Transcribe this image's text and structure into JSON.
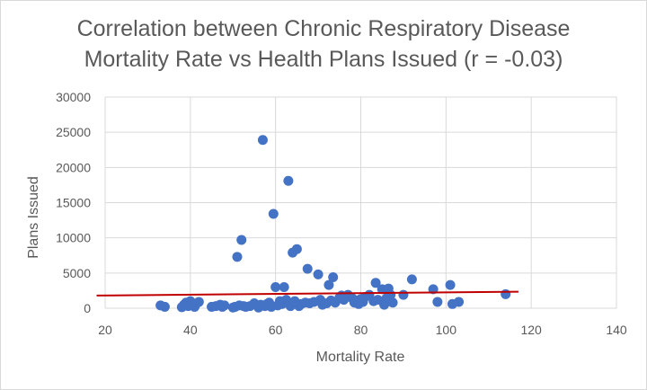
{
  "chart_data": {
    "type": "scatter",
    "title": "Correlation between Chronic Respiratory Disease Mortality Rate vs Health Plans Issued (r = -0.03)",
    "title_lines": [
      "Correlation between Chronic Respiratory Disease",
      "Mortality Rate vs Health Plans Issued (r = -0.03)"
    ],
    "xlabel": "Mortality Rate",
    "ylabel": "Plans Issued",
    "xlim": [
      20,
      140
    ],
    "ylim": [
      0,
      30000
    ],
    "x_ticks": [
      "20",
      "40",
      "60",
      "80",
      "100",
      "120",
      "140"
    ],
    "y_ticks": [
      "0",
      "5000",
      "10000",
      "15000",
      "20000",
      "25000",
      "30000"
    ],
    "grid": true,
    "point_color": "#4472C4",
    "trendline": {
      "color": "#C00000",
      "x": [
        18,
        117
      ],
      "y": [
        1800,
        2350
      ]
    },
    "points": [
      [
        33,
        400
      ],
      [
        34,
        200
      ],
      [
        38,
        150
      ],
      [
        38.5,
        500
      ],
      [
        39,
        800
      ],
      [
        39.5,
        300
      ],
      [
        40,
        1000
      ],
      [
        40.5,
        600
      ],
      [
        41,
        200
      ],
      [
        41.5,
        700
      ],
      [
        42,
        900
      ],
      [
        45,
        200
      ],
      [
        46,
        300
      ],
      [
        47,
        500
      ],
      [
        47.5,
        200
      ],
      [
        48,
        400
      ],
      [
        50,
        100
      ],
      [
        50.5,
        200
      ],
      [
        51,
        7300
      ],
      [
        51.5,
        400
      ],
      [
        52,
        9700
      ],
      [
        52.5,
        300
      ],
      [
        53,
        200
      ],
      [
        54,
        300
      ],
      [
        55,
        700
      ],
      [
        56,
        100
      ],
      [
        56.5,
        500
      ],
      [
        57,
        23900
      ],
      [
        57.5,
        300
      ],
      [
        58,
        600
      ],
      [
        58.5,
        800
      ],
      [
        59,
        200
      ],
      [
        59.5,
        13400
      ],
      [
        60,
        3000
      ],
      [
        60.5,
        400
      ],
      [
        61,
        1000
      ],
      [
        61.5,
        600
      ],
      [
        62,
        3000
      ],
      [
        62.5,
        1200
      ],
      [
        63,
        18100
      ],
      [
        63.5,
        300
      ],
      [
        64,
        7900
      ],
      [
        64.5,
        1000
      ],
      [
        65,
        8400
      ],
      [
        65.5,
        300
      ],
      [
        66,
        600
      ],
      [
        67,
        800
      ],
      [
        67.5,
        5600
      ],
      [
        68,
        700
      ],
      [
        69,
        900
      ],
      [
        70,
        4800
      ],
      [
        70.5,
        1200
      ],
      [
        71,
        500
      ],
      [
        72,
        700
      ],
      [
        72.5,
        3300
      ],
      [
        73,
        1100
      ],
      [
        73.5,
        4400
      ],
      [
        74,
        800
      ],
      [
        75,
        1500
      ],
      [
        75.5,
        1800
      ],
      [
        76,
        1200
      ],
      [
        77,
        1900
      ],
      [
        78,
        1400
      ],
      [
        78.5,
        800
      ],
      [
        79,
        1100
      ],
      [
        79.5,
        600
      ],
      [
        80,
        1300
      ],
      [
        80.5,
        900
      ],
      [
        81,
        1600
      ],
      [
        82,
        1900
      ],
      [
        83,
        1000
      ],
      [
        83.5,
        3600
      ],
      [
        84,
        1200
      ],
      [
        85,
        2700
      ],
      [
        85.5,
        500
      ],
      [
        86,
        1400
      ],
      [
        86.5,
        2800
      ],
      [
        87,
        1900
      ],
      [
        87.5,
        800
      ],
      [
        90,
        1900
      ],
      [
        92,
        4100
      ],
      [
        97,
        2700
      ],
      [
        98,
        900
      ],
      [
        101,
        3300
      ],
      [
        101.5,
        600
      ],
      [
        103,
        900
      ],
      [
        114,
        2000
      ]
    ]
  }
}
